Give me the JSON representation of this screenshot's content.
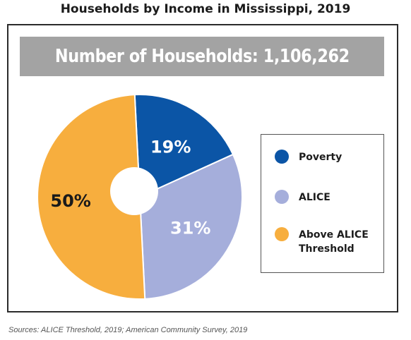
{
  "title": "Households by Income in Mississippi, 2019",
  "banner": "Number of Households: 1,106,262",
  "source": "Sources: ALICE Threshold, 2019; American Community Survey, 2019",
  "chart_data": {
    "type": "pie",
    "title": "Households by Income in Mississippi, 2019",
    "donut": true,
    "legend_position": "right",
    "slices": [
      {
        "label": "Poverty",
        "value": 19,
        "value_label": "19%",
        "color": "#0b55a6"
      },
      {
        "label": "ALICE",
        "value": 31,
        "value_label": "31%",
        "color": "#a5aedb"
      },
      {
        "label": "Above ALICE Threshold",
        "value": 50,
        "value_label": "50%",
        "color": "#f7ae3e"
      }
    ]
  },
  "legend": [
    {
      "label": "Poverty",
      "color": "#0b55a6"
    },
    {
      "label": "ALICE",
      "color": "#a5aedb"
    },
    {
      "label": "Above ALICE Threshold",
      "color": "#f7ae3e"
    }
  ]
}
